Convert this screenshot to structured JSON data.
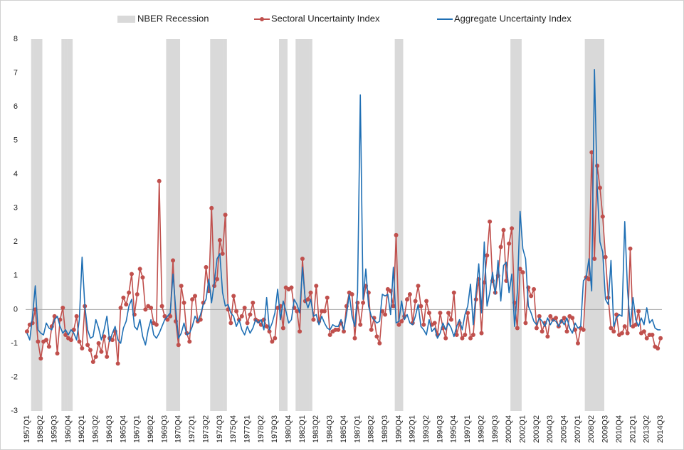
{
  "chart_data": {
    "type": "line",
    "categories": [
      "1957Q1",
      null,
      null,
      null,
      null,
      "1958Q2",
      null,
      null,
      null,
      null,
      "1959Q3",
      null,
      null,
      null,
      null,
      "1960Q4",
      null,
      null,
      null,
      null,
      "1962Q1",
      null,
      null,
      null,
      null,
      "1963Q2",
      null,
      null,
      null,
      null,
      "1964Q3",
      null,
      null,
      null,
      null,
      "1965Q4",
      null,
      null,
      null,
      null,
      "1967Q1",
      null,
      null,
      null,
      null,
      "1968Q2",
      null,
      null,
      null,
      null,
      "1969Q3",
      null,
      null,
      null,
      null,
      "1970Q4",
      null,
      null,
      null,
      null,
      "1972Q1",
      null,
      null,
      null,
      null,
      "1973Q2",
      null,
      null,
      null,
      null,
      "1974Q3",
      null,
      null,
      null,
      null,
      "1975Q4",
      null,
      null,
      null,
      null,
      "1977Q1",
      null,
      null,
      null,
      null,
      "1978Q2",
      null,
      null,
      null,
      null,
      "1979Q3",
      null,
      null,
      null,
      null,
      "1980Q4",
      null,
      null,
      null,
      null,
      "1982Q1",
      null,
      null,
      null,
      null,
      "1983Q2",
      null,
      null,
      null,
      null,
      "1984Q3",
      null,
      null,
      null,
      null,
      "1985Q4",
      null,
      null,
      null,
      null,
      "1987Q1",
      null,
      null,
      null,
      null,
      "1988Q2",
      null,
      null,
      null,
      null,
      "1989Q3",
      null,
      null,
      null,
      null,
      "1990Q4",
      null,
      null,
      null,
      null,
      "1992Q1",
      null,
      null,
      null,
      null,
      "1993Q2",
      null,
      null,
      null,
      null,
      "1994Q3",
      null,
      null,
      null,
      null,
      "1995Q4",
      null,
      null,
      null,
      null,
      "1997Q1",
      null,
      null,
      null,
      null,
      "1998Q2",
      null,
      null,
      null,
      null,
      "1999Q3",
      null,
      null,
      null,
      null,
      "2000Q4",
      null,
      null,
      null,
      null,
      "2002Q1",
      null,
      null,
      null,
      null,
      "2003Q2",
      null,
      null,
      null,
      null,
      "2004Q3",
      null,
      null,
      null,
      null,
      "2005Q4",
      null,
      null,
      null,
      null,
      "2007Q1",
      null,
      null,
      null,
      null,
      "2008Q2",
      null,
      null,
      null,
      null,
      "2009Q3",
      null,
      null,
      null,
      null,
      "2010Q4",
      null,
      null,
      null,
      null,
      "2012Q1",
      null,
      null,
      null,
      null,
      "2013Q2",
      null,
      null,
      null,
      null,
      "2014Q3"
    ],
    "ylim": [
      -3,
      8
    ],
    "yticks": [
      -3,
      -2,
      -1,
      0,
      1,
      2,
      3,
      4,
      5,
      6,
      7,
      8
    ],
    "grid": false,
    "legend": "top",
    "series": [
      {
        "name": "NBER Recession",
        "type": "bar",
        "color": "#d9d9d9",
        "values": [
          null,
          null,
          8,
          8,
          8,
          8,
          null,
          null,
          null,
          null,
          null,
          null,
          null,
          8,
          8,
          8,
          8,
          null,
          null,
          null,
          null,
          null,
          null,
          null,
          null,
          null,
          null,
          null,
          null,
          null,
          null,
          null,
          null,
          null,
          null,
          null,
          null,
          null,
          null,
          null,
          null,
          null,
          null,
          null,
          null,
          null,
          null,
          null,
          null,
          null,
          null,
          8,
          8,
          8,
          8,
          8,
          null,
          null,
          null,
          null,
          null,
          null,
          null,
          null,
          null,
          null,
          null,
          8,
          8,
          8,
          8,
          8,
          8,
          null,
          null,
          null,
          null,
          null,
          null,
          null,
          null,
          null,
          null,
          null,
          null,
          null,
          null,
          null,
          null,
          null,
          null,
          null,
          8,
          8,
          8,
          null,
          null,
          null,
          8,
          8,
          8,
          8,
          8,
          8,
          null,
          null,
          null,
          null,
          null,
          null,
          null,
          null,
          null,
          null,
          null,
          null,
          null,
          null,
          null,
          null,
          null,
          null,
          null,
          null,
          null,
          null,
          null,
          null,
          null,
          null,
          null,
          null,
          null,
          null,
          8,
          8,
          8,
          null,
          null,
          null,
          null,
          null,
          null,
          null,
          null,
          null,
          null,
          null,
          null,
          null,
          null,
          null,
          null,
          null,
          null,
          null,
          null,
          null,
          null,
          null,
          null,
          null,
          null,
          null,
          null,
          null,
          null,
          null,
          null,
          null,
          null,
          null,
          null,
          null,
          null,
          null,
          8,
          8,
          8,
          8,
          null,
          null,
          null,
          null,
          null,
          null,
          null,
          null,
          null,
          null,
          null,
          null,
          null,
          null,
          null,
          null,
          null,
          null,
          null,
          null,
          null,
          null,
          null,
          8,
          8,
          8,
          8,
          8,
          8,
          8,
          null,
          null,
          null,
          null,
          null,
          null,
          null,
          null,
          null,
          null,
          null,
          null,
          null,
          null,
          null,
          null,
          null,
          null,
          null,
          null,
          null
        ]
      },
      {
        "name": "Sectoral Uncertainty Index",
        "type": "line",
        "marker": true,
        "color": "#c0504d",
        "values": [
          -0.65,
          -0.45,
          -0.4,
          0.0,
          -0.95,
          -1.45,
          -0.95,
          -0.9,
          -1.1,
          -0.5,
          -0.2,
          -1.3,
          -0.3,
          0.05,
          -0.75,
          -0.85,
          -0.9,
          -0.6,
          -0.2,
          -0.95,
          -1.15,
          0.1,
          -1.05,
          -1.2,
          -1.55,
          -1.4,
          -1.0,
          -1.25,
          -0.8,
          -1.4,
          -0.85,
          -0.9,
          -0.65,
          -1.6,
          0.05,
          0.35,
          0.15,
          0.5,
          1.05,
          -0.15,
          0.45,
          1.2,
          0.95,
          0.0,
          0.1,
          0.05,
          -0.4,
          -0.45,
          3.8,
          0.1,
          -0.2,
          -0.3,
          -0.2,
          1.45,
          -0.35,
          -1.05,
          0.7,
          0.2,
          -0.7,
          -0.95,
          0.3,
          0.4,
          -0.35,
          -0.3,
          0.2,
          1.25,
          0.55,
          3.0,
          0.7,
          0.9,
          2.05,
          1.65,
          2.8,
          0.0,
          -0.4,
          0.4,
          -0.05,
          -0.3,
          -0.2,
          0.05,
          -0.4,
          -0.15,
          0.2,
          -0.3,
          -0.35,
          -0.45,
          -0.3,
          -0.5,
          -0.65,
          -0.95,
          -0.85,
          0.05,
          0.1,
          -0.55,
          0.65,
          0.6,
          0.65,
          0.05,
          -0.05,
          -0.65,
          1.5,
          0.25,
          0.3,
          0.5,
          -0.3,
          0.7,
          -0.35,
          -0.05,
          -0.05,
          0.35,
          -0.75,
          -0.65,
          -0.6,
          -0.6,
          -0.4,
          -0.65,
          0.1,
          0.5,
          0.45,
          -0.85,
          0.2,
          -0.45,
          0.2,
          0.7,
          0.5,
          -0.6,
          -0.25,
          -0.8,
          -1.0,
          -0.05,
          -0.15,
          0.6,
          0.55,
          0.1,
          2.2,
          -0.45,
          -0.35,
          -0.2,
          0.3,
          0.45,
          -0.4,
          0.25,
          0.7,
          0.1,
          -0.45,
          0.25,
          -0.1,
          -0.45,
          -0.4,
          -0.75,
          -0.1,
          -0.55,
          -0.85,
          -0.1,
          -0.3,
          0.5,
          -0.75,
          -0.4,
          -0.85,
          -0.75,
          -0.1,
          -0.85,
          -0.75,
          0.3,
          0.9,
          -0.7,
          0.8,
          1.6,
          2.6,
          0.85,
          0.5,
          1.0,
          1.85,
          2.35,
          0.85,
          1.95,
          2.4,
          0.2,
          -0.55,
          1.2,
          1.1,
          -0.4,
          0.65,
          0.4,
          0.6,
          -0.55,
          -0.2,
          -0.65,
          -0.4,
          -0.8,
          -0.2,
          -0.3,
          -0.25,
          -0.5,
          -0.35,
          -0.25,
          -0.65,
          -0.2,
          -0.25,
          -0.6,
          -1.0,
          -0.55,
          -0.6,
          0.95,
          0.9,
          4.65,
          1.5,
          4.25,
          3.6,
          2.75,
          1.55,
          0.35,
          -0.55,
          -0.65,
          -0.15,
          -0.75,
          -0.7,
          -0.5,
          -0.7,
          1.8,
          -0.5,
          -0.45,
          -0.05,
          -0.7,
          -0.65,
          -0.85,
          -0.75,
          -0.75,
          -1.1,
          -1.15,
          -0.85
        ]
      },
      {
        "name": "Aggregate Uncertainty Index",
        "type": "line",
        "marker": false,
        "color": "#1f6fb4",
        "values": [
          -0.7,
          -0.9,
          -0.2,
          0.7,
          -0.6,
          -0.7,
          -0.75,
          -0.4,
          -0.55,
          -0.6,
          -0.3,
          -0.2,
          -0.5,
          -0.7,
          -0.6,
          -0.75,
          -0.6,
          -0.7,
          -0.9,
          -0.3,
          1.55,
          0.1,
          -0.6,
          -0.85,
          -0.8,
          -0.3,
          -0.55,
          -0.9,
          -0.6,
          -0.2,
          -0.95,
          -0.7,
          -0.5,
          -0.9,
          -1.0,
          -0.55,
          -0.35,
          0.1,
          0.3,
          -0.5,
          -0.6,
          -0.3,
          -0.8,
          -1.05,
          -0.6,
          -0.3,
          -0.75,
          -0.85,
          -0.7,
          -0.5,
          -0.3,
          -0.2,
          -0.1,
          1.05,
          0.0,
          -0.85,
          -0.7,
          -0.4,
          -0.75,
          -0.7,
          -0.5,
          -0.2,
          -0.35,
          -0.15,
          0.15,
          0.3,
          0.9,
          0.2,
          0.8,
          1.5,
          1.65,
          0.5,
          0.1,
          0.15,
          -0.1,
          -0.2,
          -0.5,
          -0.3,
          -0.6,
          -0.75,
          -0.5,
          -0.7,
          -0.55,
          -0.3,
          -0.4,
          -0.3,
          -0.6,
          0.35,
          -0.6,
          -0.4,
          -0.1,
          0.6,
          -0.3,
          0.25,
          -0.05,
          -0.4,
          -0.3,
          0.3,
          0.15,
          -0.1,
          1.25,
          0.3,
          0.05,
          0.3,
          -0.2,
          -0.15,
          -0.45,
          -0.2,
          -0.4,
          -0.55,
          -0.6,
          -0.45,
          -0.5,
          -0.5,
          -0.3,
          -0.6,
          -0.15,
          0.45,
          -0.2,
          -0.5,
          0.5,
          6.35,
          0.3,
          1.2,
          0.1,
          -0.2,
          -0.3,
          -0.4,
          -0.35,
          0.45,
          0.4,
          0.45,
          -0.15,
          1.25,
          -0.4,
          -0.35,
          0.25,
          -0.3,
          -0.15,
          -0.4,
          -0.45,
          -0.2,
          0.15,
          -0.5,
          -0.6,
          -0.75,
          -0.3,
          -0.65,
          -0.55,
          -0.85,
          -0.7,
          -0.4,
          -0.6,
          -0.4,
          -0.55,
          -0.8,
          -0.5,
          -0.3,
          -0.6,
          -0.15,
          0.1,
          0.75,
          -0.45,
          0.5,
          1.35,
          -0.1,
          2.0,
          0.1,
          0.5,
          1.1,
          0.45,
          1.45,
          0.25,
          1.3,
          1.4,
          0.5,
          1.05,
          -0.5,
          0.5,
          2.9,
          1.8,
          1.5,
          0.1,
          -0.1,
          -0.35,
          -0.45,
          -0.25,
          -0.35,
          -0.5,
          -0.25,
          -0.45,
          -0.3,
          -0.35,
          -0.5,
          -0.3,
          -0.45,
          -0.25,
          -0.55,
          -0.7,
          -0.4,
          -0.55,
          -0.5,
          0.85,
          0.95,
          1.5,
          0.55,
          7.1,
          3.6,
          2.0,
          1.7,
          0.3,
          0.15,
          1.45,
          -0.5,
          -0.25,
          -0.15,
          -0.2,
          2.6,
          0.6,
          -0.5,
          0.35,
          -0.3,
          -0.5,
          -0.25,
          -0.45,
          0.05,
          -0.4,
          -0.3,
          -0.55,
          -0.6,
          -0.6
        ]
      }
    ]
  }
}
